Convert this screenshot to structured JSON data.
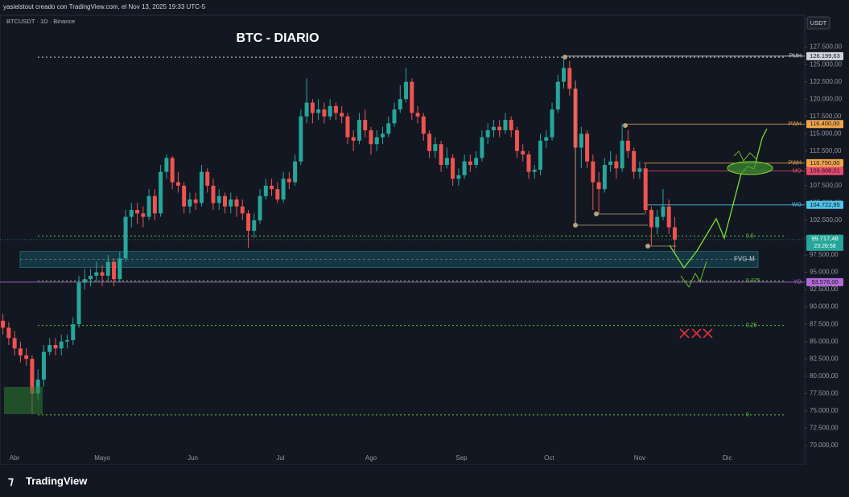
{
  "header": "yasielstout creado con TradingView.com, el Nov 13, 2025 19:33 UTC-5",
  "footer": "TradingView",
  "currency_button": "USDT",
  "chart_data": {
    "type": "candlestick",
    "title": "BTC - DIARIO",
    "subtitle": "BTCUSDT · 1D · Binance",
    "up_color": "#26a69a",
    "down_color": "#ef5350",
    "ylim": [
      67200,
      132100
    ],
    "yticks": [
      {
        "value": 70000,
        "label": "70.000,00"
      },
      {
        "value": 72500,
        "label": "72.500,00"
      },
      {
        "value": 75000,
        "label": "75.000,00"
      },
      {
        "value": 77500,
        "label": "77.500,00"
      },
      {
        "value": 80000,
        "label": "80.000,00"
      },
      {
        "value": 82500,
        "label": "82.500,00"
      },
      {
        "value": 85000,
        "label": "85.000,00"
      },
      {
        "value": 87500,
        "label": "87.500,00"
      },
      {
        "value": 90000,
        "label": "90.000,00"
      },
      {
        "value": 92500,
        "label": "92.500,00"
      },
      {
        "value": 95000,
        "label": "95.000,00"
      },
      {
        "value": 97500,
        "label": "97.500,00"
      },
      {
        "value": 100000,
        "label": "100.000,00"
      },
      {
        "value": 102500,
        "label": "102.500,00"
      },
      {
        "value": 105000,
        "label": "105.000,00"
      },
      {
        "value": 107500,
        "label": "107.500,00"
      },
      {
        "value": 110000,
        "label": "110.000,00"
      },
      {
        "value": 112500,
        "label": "112.500,00"
      },
      {
        "value": 115000,
        "label": "115.000,00"
      },
      {
        "value": 117500,
        "label": "117.500,00"
      },
      {
        "value": 120000,
        "label": "120.000,00"
      },
      {
        "value": 122500,
        "label": "122.500,00"
      },
      {
        "value": 125000,
        "label": "125.000,00"
      },
      {
        "value": 127500,
        "label": "127.500,00"
      }
    ],
    "xlim": [
      -5,
      270.5
    ],
    "xticks": [
      {
        "value": 0,
        "label": "Abr"
      },
      {
        "value": 30,
        "label": "Mayo"
      },
      {
        "value": 61,
        "label": "Jun"
      },
      {
        "value": 91,
        "label": "Jul"
      },
      {
        "value": 122,
        "label": "Ago"
      },
      {
        "value": 153,
        "label": "Sep"
      },
      {
        "value": 183,
        "label": "Oct"
      },
      {
        "value": 214,
        "label": "Nov"
      },
      {
        "value": 244,
        "label": "Dic"
      }
    ],
    "x": [
      -4,
      -2,
      0,
      2,
      4,
      6,
      8,
      10,
      12,
      14,
      16,
      18,
      20,
      22,
      24,
      26,
      28,
      30,
      32,
      34,
      36,
      38,
      40,
      42,
      44,
      46,
      48,
      50,
      52,
      54,
      56,
      58,
      60,
      62,
      64,
      66,
      68,
      70,
      72,
      74,
      76,
      78,
      80,
      82,
      84,
      86,
      88,
      90,
      92,
      94,
      96,
      98,
      100,
      102,
      104,
      106,
      108,
      110,
      112,
      114,
      116,
      118,
      120,
      122,
      124,
      126,
      128,
      130,
      132,
      134,
      136,
      138,
      140,
      142,
      144,
      146,
      148,
      150,
      152,
      154,
      156,
      158,
      160,
      162,
      164,
      166,
      168,
      170,
      172,
      174,
      176,
      178,
      180,
      182,
      184,
      186,
      188,
      190,
      192,
      194,
      196,
      198,
      200,
      202,
      204,
      206,
      208,
      210,
      212,
      214,
      216,
      218,
      220,
      222,
      224,
      226
    ],
    "candles": [
      [
        88000,
        89000,
        86000,
        87000
      ],
      [
        87000,
        87800,
        84500,
        85500
      ],
      [
        85500,
        86500,
        83000,
        84000
      ],
      [
        84000,
        85000,
        82000,
        83000
      ],
      [
        83000,
        84000,
        81500,
        82500
      ],
      [
        82500,
        83000,
        74500,
        77500
      ],
      [
        77500,
        81000,
        76500,
        79500
      ],
      [
        79500,
        84500,
        78500,
        83500
      ],
      [
        83500,
        85500,
        83000,
        84500
      ],
      [
        84500,
        85500,
        83000,
        84000
      ],
      [
        84000,
        86000,
        83000,
        85000
      ],
      [
        85000,
        86000,
        84000,
        85200
      ],
      [
        85200,
        88500,
        84500,
        87500
      ],
      [
        87500,
        94500,
        87000,
        93500
      ],
      [
        93500,
        95500,
        92500,
        94000
      ],
      [
        94000,
        95500,
        93000,
        94500
      ],
      [
        94500,
        96500,
        93500,
        95000
      ],
      [
        95000,
        96000,
        93000,
        94500
      ],
      [
        94500,
        97500,
        93500,
        96500
      ],
      [
        96500,
        97000,
        93000,
        94000
      ],
      [
        94000,
        98000,
        93500,
        97000
      ],
      [
        97000,
        104000,
        96500,
        103000
      ],
      [
        103000,
        105000,
        101500,
        104000
      ],
      [
        104000,
        105000,
        102000,
        103500
      ],
      [
        103500,
        104500,
        101500,
        103000
      ],
      [
        103000,
        107000,
        102500,
        106000
      ],
      [
        106000,
        107000,
        102500,
        103500
      ],
      [
        103500,
        110500,
        103000,
        109500
      ],
      [
        109500,
        112000,
        108500,
        111500
      ],
      [
        111500,
        111800,
        107000,
        108000
      ],
      [
        108000,
        109500,
        106500,
        107500
      ],
      [
        107500,
        108000,
        103500,
        104500
      ],
      [
        104500,
        106500,
        103500,
        105500
      ],
      [
        105500,
        106500,
        104000,
        105000
      ],
      [
        105000,
        110500,
        104500,
        109500
      ],
      [
        109500,
        110000,
        106500,
        107500
      ],
      [
        107500,
        108500,
        104000,
        105000
      ],
      [
        105000,
        107000,
        104000,
        106000
      ],
      [
        106000,
        106500,
        103500,
        104500
      ],
      [
        104500,
        106500,
        103500,
        105500
      ],
      [
        105500,
        106000,
        103000,
        104500
      ],
      [
        104500,
        105500,
        102500,
        103500
      ],
      [
        103500,
        104000,
        98500,
        101000
      ],
      [
        101000,
        103500,
        100000,
        102500
      ],
      [
        102500,
        107000,
        102000,
        106000
      ],
      [
        106000,
        108500,
        105500,
        107500
      ],
      [
        107500,
        108500,
        106000,
        107000
      ],
      [
        107000,
        108000,
        105000,
        105500
      ],
      [
        105500,
        109500,
        105000,
        108500
      ],
      [
        108500,
        109500,
        107000,
        108000
      ],
      [
        108000,
        112000,
        107500,
        111000
      ],
      [
        111000,
        118500,
        110500,
        117500
      ],
      [
        117500,
        123000,
        116500,
        119500
      ],
      [
        119500,
        120000,
        116500,
        118000
      ],
      [
        118000,
        120000,
        117000,
        118500
      ],
      [
        118500,
        119500,
        116500,
        117500
      ],
      [
        117500,
        120000,
        117000,
        119000
      ],
      [
        119000,
        119500,
        117000,
        118000
      ],
      [
        118000,
        119000,
        116500,
        117500
      ],
      [
        117500,
        118000,
        113500,
        114500
      ],
      [
        114500,
        115500,
        112500,
        114000
      ],
      [
        114000,
        118000,
        113500,
        117000
      ],
      [
        117000,
        118500,
        114500,
        115500
      ],
      [
        115500,
        116000,
        112000,
        113500
      ],
      [
        113500,
        115500,
        112500,
        114500
      ],
      [
        114500,
        116000,
        113500,
        115000
      ],
      [
        115000,
        117500,
        114500,
        116500
      ],
      [
        116500,
        119500,
        116000,
        118500
      ],
      [
        118500,
        122000,
        118000,
        120000
      ],
      [
        120000,
        124500,
        119500,
        122500
      ],
      [
        122500,
        123000,
        117000,
        118000
      ],
      [
        118000,
        119000,
        116500,
        117500
      ],
      [
        117500,
        118000,
        114000,
        115000
      ],
      [
        115000,
        115500,
        111500,
        112500
      ],
      [
        112500,
        114500,
        111500,
        113500
      ],
      [
        113500,
        114000,
        109500,
        110500
      ],
      [
        110500,
        113000,
        110000,
        111500
      ],
      [
        111500,
        112000,
        107500,
        108500
      ],
      [
        108500,
        110000,
        107500,
        109000
      ],
      [
        109000,
        112000,
        108500,
        111000
      ],
      [
        111000,
        112000,
        109500,
        110500
      ],
      [
        110500,
        112500,
        110000,
        111500
      ],
      [
        111500,
        115500,
        111000,
        114500
      ],
      [
        114500,
        116500,
        113500,
        115500
      ],
      [
        115500,
        117000,
        114500,
        116000
      ],
      [
        116000,
        117000,
        114500,
        115500
      ],
      [
        115500,
        118000,
        115000,
        117000
      ],
      [
        117000,
        117500,
        114500,
        115500
      ],
      [
        115500,
        116000,
        111500,
        112500
      ],
      [
        112500,
        113500,
        111000,
        112000
      ],
      [
        112000,
        112500,
        108500,
        109500
      ],
      [
        109500,
        110500,
        108500,
        109800
      ],
      [
        109800,
        115000,
        109000,
        114000
      ],
      [
        114000,
        115500,
        113000,
        114500
      ],
      [
        114500,
        119500,
        114000,
        118500
      ],
      [
        118500,
        123500,
        118000,
        122500
      ],
      [
        122500,
        126199,
        121500,
        124500
      ],
      [
        124500,
        125500,
        120500,
        121500
      ],
      [
        121500,
        122500,
        102000,
        113000
      ],
      [
        113000,
        116000,
        110000,
        115000
      ],
      [
        115000,
        115500,
        110000,
        111000
      ],
      [
        111000,
        112000,
        104000,
        108000
      ],
      [
        108000,
        109500,
        103500,
        107000
      ],
      [
        107000,
        111500,
        106500,
        110500
      ],
      [
        110500,
        112500,
        109500,
        111000
      ],
      [
        111000,
        112000,
        108500,
        110000
      ],
      [
        110000,
        116400,
        109500,
        114000
      ],
      [
        114000,
        115500,
        111500,
        112500
      ],
      [
        112500,
        113000,
        108500,
        109500
      ],
      [
        109500,
        111000,
        108500,
        110000
      ],
      [
        110000,
        110750,
        103500,
        104000
      ],
      [
        104000,
        104500,
        98900,
        101500
      ],
      [
        101500,
        104000,
        100500,
        103000
      ],
      [
        103000,
        107000,
        102500,
        104500
      ],
      [
        104500,
        105500,
        100500,
        101500
      ],
      [
        101500,
        103000,
        98000,
        99717
      ]
    ],
    "levels": [
      {
        "name": "PMH",
        "value": 126199.63,
        "label": "126.199,63",
        "color": "#d1d4dc"
      },
      {
        "name": "PWH",
        "value": 116400,
        "label": "116.400,00",
        "color": "#f0a44b"
      },
      {
        "name": "PWH",
        "value": 110750,
        "label": "110.750,00",
        "color": "#f0a44b"
      },
      {
        "name": "MO",
        "value": 109608.01,
        "label": "109.608,01",
        "color": "#e84a6f"
      },
      {
        "name": "WO",
        "value": 104722.95,
        "label": "104.722,95",
        "color": "#4fc3e8"
      },
      {
        "name": "YO",
        "value": 93576,
        "label": "93.576,00",
        "color": "#b36ad8"
      }
    ],
    "last_price": {
      "value": 99717.48,
      "label": "99.717,48",
      "countdown": "23:26:58",
      "color": "#26a69a"
    },
    "fib": [
      {
        "level": "0.5",
        "value": 100233
      },
      {
        "level": "0.375",
        "value": 93779
      },
      {
        "level": "0.25",
        "value": 87326
      },
      {
        "level": "0",
        "value": 74419
      }
    ],
    "fib_top": 126047,
    "zone": {
      "name": "FVG-M",
      "from": 95700,
      "to": 98000
    }
  }
}
